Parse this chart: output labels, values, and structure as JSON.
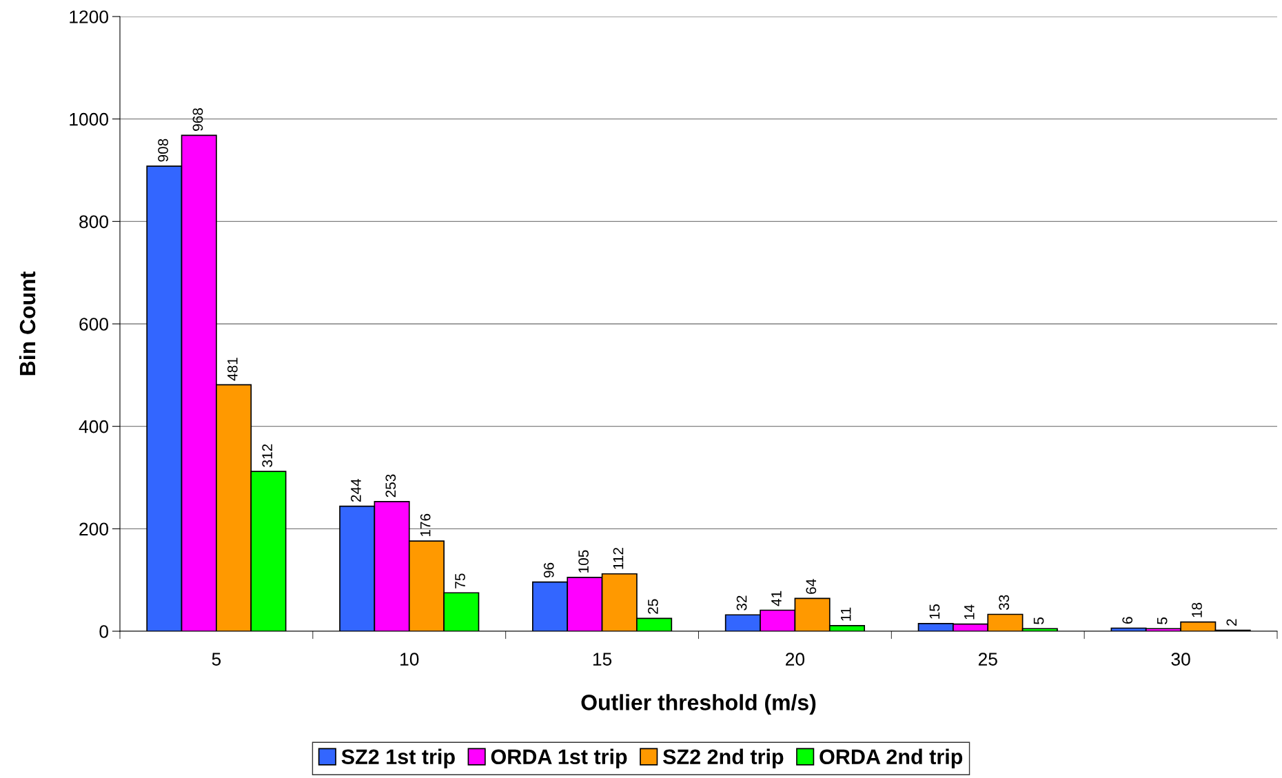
{
  "chart_data": {
    "type": "bar",
    "xlabel": "Outlier threshold (m/s)",
    "ylabel": "Bin Count",
    "categories": [
      "5",
      "10",
      "15",
      "20",
      "25",
      "30"
    ],
    "series": [
      {
        "name": "SZ2 1st trip",
        "color": "#3366ff",
        "values": [
          908,
          244,
          96,
          32,
          15,
          6
        ]
      },
      {
        "name": "ORDA 1st trip",
        "color": "#ff00ff",
        "values": [
          968,
          253,
          105,
          41,
          14,
          5
        ]
      },
      {
        "name": "SZ2 2nd trip",
        "color": "#ff9900",
        "values": [
          481,
          176,
          112,
          64,
          33,
          18
        ]
      },
      {
        "name": "ORDA 2nd trip",
        "color": "#00ff00",
        "values": [
          312,
          75,
          25,
          11,
          5,
          2
        ]
      }
    ],
    "ylim": [
      0,
      1200
    ],
    "yticks": [
      0,
      200,
      400,
      600,
      800,
      1000,
      1200
    ],
    "grid": "y",
    "legend": "bottom",
    "data_labels": true
  }
}
